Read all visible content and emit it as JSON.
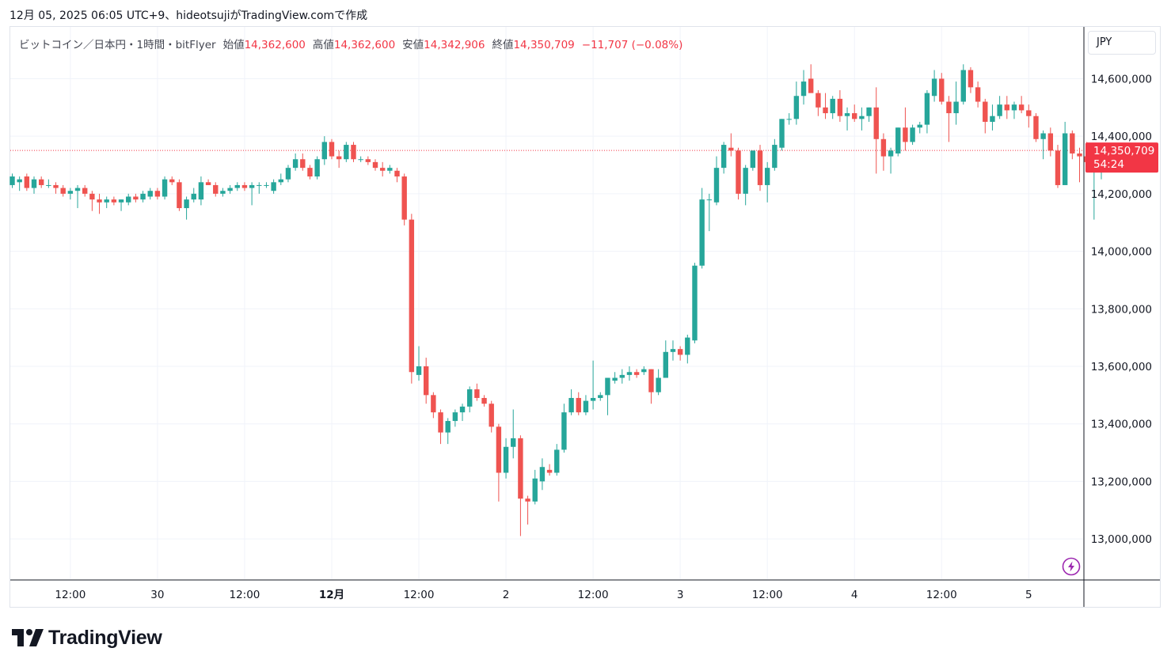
{
  "header": {
    "caption": "12月 05, 2025 06:05 UTC+9、hideotsujiがTradingView.comで作成"
  },
  "legend": {
    "symbol": "ビットコイン／日本円・1時間・bitFlyer",
    "open_label": "始値",
    "open_value": "14,362,600",
    "high_label": "高値",
    "high_value": "14,362,600",
    "low_label": "安値",
    "low_value": "14,342,906",
    "close_label": "終値",
    "close_value": "14,350,709",
    "change": "−11,707 (−0.08%)"
  },
  "currency_button": "JPY",
  "last_price_tag": {
    "price": "14,350,709",
    "countdown": "54:24"
  },
  "brand": {
    "name": "TradingView",
    "logo_icon": "tradingview-logo-icon"
  },
  "colors": {
    "up": "#26a69a",
    "down": "#ef5350",
    "grid": "#f0f3fa",
    "axis_text": "#131722",
    "price_line": "#f23645"
  },
  "chart_data": {
    "type": "candlestick",
    "y_tick_labels": [
      "14,600,000",
      "14,400,000",
      "14,200,000",
      "14,000,000",
      "13,800,000",
      "13,600,000",
      "13,400,000",
      "13,200,000",
      "13,000,000"
    ],
    "y_ticks": [
      14600000,
      14400000,
      14200000,
      14000000,
      13800000,
      13600000,
      13400000,
      13200000,
      13000000
    ],
    "ylim": [
      12860000,
      14780000
    ],
    "x_tick_labels": [
      "12:00",
      "30",
      "12:00",
      "12月",
      "12:00",
      "2",
      "12:00",
      "3",
      "12:00",
      "4",
      "12:00",
      "5"
    ],
    "bar_interval": "1h",
    "last_price": 14350709,
    "candles": [
      {
        "o": 14230000,
        "h": 14270000,
        "l": 14220000,
        "c": 14260000
      },
      {
        "o": 14240000,
        "h": 14260000,
        "l": 14210000,
        "c": 14250000
      },
      {
        "o": 14260000,
        "h": 14270000,
        "l": 14210000,
        "c": 14220000
      },
      {
        "o": 14220000,
        "h": 14260000,
        "l": 14200000,
        "c": 14250000
      },
      {
        "o": 14250000,
        "h": 14260000,
        "l": 14220000,
        "c": 14230000
      },
      {
        "o": 14230000,
        "h": 14250000,
        "l": 14220000,
        "c": 14230000
      },
      {
        "o": 14230000,
        "h": 14240000,
        "l": 14200000,
        "c": 14220000
      },
      {
        "o": 14220000,
        "h": 14230000,
        "l": 14190000,
        "c": 14200000
      },
      {
        "o": 14200000,
        "h": 14220000,
        "l": 14180000,
        "c": 14210000
      },
      {
        "o": 14210000,
        "h": 14230000,
        "l": 14150000,
        "c": 14220000
      },
      {
        "o": 14220000,
        "h": 14230000,
        "l": 14190000,
        "c": 14200000
      },
      {
        "o": 14200000,
        "h": 14210000,
        "l": 14140000,
        "c": 14180000
      },
      {
        "o": 14180000,
        "h": 14200000,
        "l": 14130000,
        "c": 14170000
      },
      {
        "o": 14170000,
        "h": 14190000,
        "l": 14150000,
        "c": 14180000
      },
      {
        "o": 14180000,
        "h": 14190000,
        "l": 14160000,
        "c": 14170000
      },
      {
        "o": 14170000,
        "h": 14180000,
        "l": 14140000,
        "c": 14180000
      },
      {
        "o": 14170000,
        "h": 14200000,
        "l": 14160000,
        "c": 14190000
      },
      {
        "o": 14190000,
        "h": 14200000,
        "l": 14170000,
        "c": 14180000
      },
      {
        "o": 14180000,
        "h": 14210000,
        "l": 14170000,
        "c": 14200000
      },
      {
        "o": 14190000,
        "h": 14220000,
        "l": 14180000,
        "c": 14210000
      },
      {
        "o": 14210000,
        "h": 14220000,
        "l": 14180000,
        "c": 14190000
      },
      {
        "o": 14190000,
        "h": 14260000,
        "l": 14180000,
        "c": 14250000
      },
      {
        "o": 14250000,
        "h": 14260000,
        "l": 14230000,
        "c": 14240000
      },
      {
        "o": 14240000,
        "h": 14250000,
        "l": 14140000,
        "c": 14150000
      },
      {
        "o": 14150000,
        "h": 14190000,
        "l": 14110000,
        "c": 14180000
      },
      {
        "o": 14180000,
        "h": 14220000,
        "l": 14170000,
        "c": 14200000
      },
      {
        "o": 14180000,
        "h": 14260000,
        "l": 14160000,
        "c": 14240000
      },
      {
        "o": 14240000,
        "h": 14250000,
        "l": 14230000,
        "c": 14230000
      },
      {
        "o": 14230000,
        "h": 14240000,
        "l": 14190000,
        "c": 14200000
      },
      {
        "o": 14200000,
        "h": 14220000,
        "l": 14190000,
        "c": 14210000
      },
      {
        "o": 14210000,
        "h": 14230000,
        "l": 14200000,
        "c": 14220000
      },
      {
        "o": 14220000,
        "h": 14240000,
        "l": 14210000,
        "c": 14230000
      },
      {
        "o": 14230000,
        "h": 14240000,
        "l": 14210000,
        "c": 14220000
      },
      {
        "o": 14220000,
        "h": 14240000,
        "l": 14160000,
        "c": 14230000
      },
      {
        "o": 14230000,
        "h": 14240000,
        "l": 14200000,
        "c": 14230000
      },
      {
        "o": 14230000,
        "h": 14240000,
        "l": 14220000,
        "c": 14230000
      },
      {
        "o": 14210000,
        "h": 14250000,
        "l": 14200000,
        "c": 14240000
      },
      {
        "o": 14240000,
        "h": 14270000,
        "l": 14230000,
        "c": 14250000
      },
      {
        "o": 14250000,
        "h": 14300000,
        "l": 14240000,
        "c": 14290000
      },
      {
        "o": 14290000,
        "h": 14340000,
        "l": 14280000,
        "c": 14320000
      },
      {
        "o": 14320000,
        "h": 14340000,
        "l": 14280000,
        "c": 14290000
      },
      {
        "o": 14290000,
        "h": 14300000,
        "l": 14250000,
        "c": 14260000
      },
      {
        "o": 14260000,
        "h": 14330000,
        "l": 14250000,
        "c": 14320000
      },
      {
        "o": 14320000,
        "h": 14400000,
        "l": 14300000,
        "c": 14380000
      },
      {
        "o": 14380000,
        "h": 14390000,
        "l": 14320000,
        "c": 14330000
      },
      {
        "o": 14330000,
        "h": 14350000,
        "l": 14290000,
        "c": 14320000
      },
      {
        "o": 14320000,
        "h": 14380000,
        "l": 14310000,
        "c": 14370000
      },
      {
        "o": 14370000,
        "h": 14380000,
        "l": 14310000,
        "c": 14320000
      },
      {
        "o": 14320000,
        "h": 14330000,
        "l": 14310000,
        "c": 14320000
      },
      {
        "o": 14320000,
        "h": 14330000,
        "l": 14300000,
        "c": 14310000
      },
      {
        "o": 14310000,
        "h": 14320000,
        "l": 14280000,
        "c": 14290000
      },
      {
        "o": 14290000,
        "h": 14310000,
        "l": 14260000,
        "c": 14280000
      },
      {
        "o": 14280000,
        "h": 14300000,
        "l": 14270000,
        "c": 14290000
      },
      {
        "o": 14280000,
        "h": 14290000,
        "l": 14240000,
        "c": 14260000
      },
      {
        "o": 14260000,
        "h": 14270000,
        "l": 14090000,
        "c": 14110000
      },
      {
        "o": 14110000,
        "h": 14130000,
        "l": 13540000,
        "c": 13580000
      },
      {
        "o": 13570000,
        "h": 13670000,
        "l": 13550000,
        "c": 13600000
      },
      {
        "o": 13600000,
        "h": 13630000,
        "l": 13470000,
        "c": 13500000
      },
      {
        "o": 13500000,
        "h": 13510000,
        "l": 13420000,
        "c": 13440000
      },
      {
        "o": 13440000,
        "h": 13450000,
        "l": 13330000,
        "c": 13370000
      },
      {
        "o": 13370000,
        "h": 13420000,
        "l": 13330000,
        "c": 13410000
      },
      {
        "o": 13410000,
        "h": 13450000,
        "l": 13390000,
        "c": 13440000
      },
      {
        "o": 13440000,
        "h": 13470000,
        "l": 13410000,
        "c": 13460000
      },
      {
        "o": 13460000,
        "h": 13530000,
        "l": 13440000,
        "c": 13520000
      },
      {
        "o": 13520000,
        "h": 13540000,
        "l": 13480000,
        "c": 13490000
      },
      {
        "o": 13490000,
        "h": 13500000,
        "l": 13460000,
        "c": 13470000
      },
      {
        "o": 13470000,
        "h": 13480000,
        "l": 13370000,
        "c": 13390000
      },
      {
        "o": 13390000,
        "h": 13400000,
        "l": 13130000,
        "c": 13230000
      },
      {
        "o": 13230000,
        "h": 13350000,
        "l": 13210000,
        "c": 13320000
      },
      {
        "o": 13320000,
        "h": 13450000,
        "l": 13280000,
        "c": 13350000
      },
      {
        "o": 13350000,
        "h": 13360000,
        "l": 13010000,
        "c": 13140000
      },
      {
        "o": 13140000,
        "h": 13150000,
        "l": 13050000,
        "c": 13130000
      },
      {
        "o": 13130000,
        "h": 13240000,
        "l": 13120000,
        "c": 13210000
      },
      {
        "o": 13200000,
        "h": 13280000,
        "l": 13170000,
        "c": 13250000
      },
      {
        "o": 13240000,
        "h": 13260000,
        "l": 13220000,
        "c": 13230000
      },
      {
        "o": 13230000,
        "h": 13330000,
        "l": 13220000,
        "c": 13310000
      },
      {
        "o": 13310000,
        "h": 13470000,
        "l": 13300000,
        "c": 13440000
      },
      {
        "o": 13440000,
        "h": 13520000,
        "l": 13430000,
        "c": 13490000
      },
      {
        "o": 13490000,
        "h": 13510000,
        "l": 13430000,
        "c": 13440000
      },
      {
        "o": 13440000,
        "h": 13500000,
        "l": 13430000,
        "c": 13480000
      },
      {
        "o": 13480000,
        "h": 13620000,
        "l": 13450000,
        "c": 13490000
      },
      {
        "o": 13490000,
        "h": 13510000,
        "l": 13480000,
        "c": 13500000
      },
      {
        "o": 13500000,
        "h": 13560000,
        "l": 13430000,
        "c": 13560000
      },
      {
        "o": 13550000,
        "h": 13580000,
        "l": 13540000,
        "c": 13560000
      },
      {
        "o": 13560000,
        "h": 13590000,
        "l": 13540000,
        "c": 13570000
      },
      {
        "o": 13570000,
        "h": 13600000,
        "l": 13550000,
        "c": 13580000
      },
      {
        "o": 13580000,
        "h": 13590000,
        "l": 13560000,
        "c": 13570000
      },
      {
        "o": 13580000,
        "h": 13600000,
        "l": 13570000,
        "c": 13590000
      },
      {
        "o": 13590000,
        "h": 13590000,
        "l": 13470000,
        "c": 13510000
      },
      {
        "o": 13510000,
        "h": 13590000,
        "l": 13500000,
        "c": 13560000
      },
      {
        "o": 13560000,
        "h": 13690000,
        "l": 13560000,
        "c": 13650000
      },
      {
        "o": 13650000,
        "h": 13690000,
        "l": 13620000,
        "c": 13660000
      },
      {
        "o": 13660000,
        "h": 13670000,
        "l": 13620000,
        "c": 13640000
      },
      {
        "o": 13640000,
        "h": 13710000,
        "l": 13610000,
        "c": 13700000
      },
      {
        "o": 13690000,
        "h": 13960000,
        "l": 13680000,
        "c": 13950000
      },
      {
        "o": 13950000,
        "h": 14220000,
        "l": 13940000,
        "c": 14180000
      },
      {
        "o": 14180000,
        "h": 14200000,
        "l": 14070000,
        "c": 14180000
      },
      {
        "o": 14170000,
        "h": 14330000,
        "l": 14160000,
        "c": 14290000
      },
      {
        "o": 14290000,
        "h": 14380000,
        "l": 14270000,
        "c": 14370000
      },
      {
        "o": 14360000,
        "h": 14410000,
        "l": 14330000,
        "c": 14350000
      },
      {
        "o": 14350000,
        "h": 14360000,
        "l": 14180000,
        "c": 14200000
      },
      {
        "o": 14200000,
        "h": 14300000,
        "l": 14160000,
        "c": 14290000
      },
      {
        "o": 14290000,
        "h": 14350000,
        "l": 14280000,
        "c": 14350000
      },
      {
        "o": 14350000,
        "h": 14370000,
        "l": 14210000,
        "c": 14230000
      },
      {
        "o": 14230000,
        "h": 14310000,
        "l": 14170000,
        "c": 14290000
      },
      {
        "o": 14290000,
        "h": 14390000,
        "l": 14280000,
        "c": 14370000
      },
      {
        "o": 14360000,
        "h": 14460000,
        "l": 14350000,
        "c": 14460000
      },
      {
        "o": 14460000,
        "h": 14480000,
        "l": 14440000,
        "c": 14460000
      },
      {
        "o": 14460000,
        "h": 14590000,
        "l": 14440000,
        "c": 14540000
      },
      {
        "o": 14540000,
        "h": 14630000,
        "l": 14510000,
        "c": 14590000
      },
      {
        "o": 14600000,
        "h": 14650000,
        "l": 14560000,
        "c": 14550000
      },
      {
        "o": 14550000,
        "h": 14560000,
        "l": 14470000,
        "c": 14500000
      },
      {
        "o": 14500000,
        "h": 14550000,
        "l": 14460000,
        "c": 14480000
      },
      {
        "o": 14480000,
        "h": 14540000,
        "l": 14460000,
        "c": 14530000
      },
      {
        "o": 14530000,
        "h": 14560000,
        "l": 14450000,
        "c": 14470000
      },
      {
        "o": 14470000,
        "h": 14500000,
        "l": 14420000,
        "c": 14480000
      },
      {
        "o": 14480000,
        "h": 14510000,
        "l": 14450000,
        "c": 14460000
      },
      {
        "o": 14460000,
        "h": 14500000,
        "l": 14420000,
        "c": 14470000
      },
      {
        "o": 14470000,
        "h": 14500000,
        "l": 14450000,
        "c": 14500000
      },
      {
        "o": 14500000,
        "h": 14570000,
        "l": 14270000,
        "c": 14390000
      },
      {
        "o": 14390000,
        "h": 14410000,
        "l": 14280000,
        "c": 14330000
      },
      {
        "o": 14330000,
        "h": 14360000,
        "l": 14270000,
        "c": 14350000
      },
      {
        "o": 14340000,
        "h": 14430000,
        "l": 14330000,
        "c": 14430000
      },
      {
        "o": 14430000,
        "h": 14500000,
        "l": 14350000,
        "c": 14380000
      },
      {
        "o": 14380000,
        "h": 14440000,
        "l": 14370000,
        "c": 14430000
      },
      {
        "o": 14430000,
        "h": 14450000,
        "l": 14410000,
        "c": 14440000
      },
      {
        "o": 14440000,
        "h": 14560000,
        "l": 14410000,
        "c": 14550000
      },
      {
        "o": 14540000,
        "h": 14630000,
        "l": 14520000,
        "c": 14600000
      },
      {
        "o": 14600000,
        "h": 14620000,
        "l": 14510000,
        "c": 14520000
      },
      {
        "o": 14520000,
        "h": 14540000,
        "l": 14380000,
        "c": 14480000
      },
      {
        "o": 14480000,
        "h": 14590000,
        "l": 14440000,
        "c": 14520000
      },
      {
        "o": 14520000,
        "h": 14650000,
        "l": 14510000,
        "c": 14630000
      },
      {
        "o": 14630000,
        "h": 14640000,
        "l": 14550000,
        "c": 14570000
      },
      {
        "o": 14570000,
        "h": 14590000,
        "l": 14500000,
        "c": 14520000
      },
      {
        "o": 14520000,
        "h": 14530000,
        "l": 14410000,
        "c": 14450000
      },
      {
        "o": 14450000,
        "h": 14510000,
        "l": 14420000,
        "c": 14470000
      },
      {
        "o": 14470000,
        "h": 14540000,
        "l": 14460000,
        "c": 14510000
      },
      {
        "o": 14510000,
        "h": 14540000,
        "l": 14460000,
        "c": 14490000
      },
      {
        "o": 14490000,
        "h": 14520000,
        "l": 14460000,
        "c": 14510000
      },
      {
        "o": 14510000,
        "h": 14540000,
        "l": 14480000,
        "c": 14490000
      },
      {
        "o": 14490000,
        "h": 14510000,
        "l": 14430000,
        "c": 14470000
      },
      {
        "o": 14470000,
        "h": 14480000,
        "l": 14380000,
        "c": 14390000
      },
      {
        "o": 14390000,
        "h": 14420000,
        "l": 14320000,
        "c": 14410000
      },
      {
        "o": 14410000,
        "h": 14430000,
        "l": 14330000,
        "c": 14350000
      },
      {
        "o": 14350000,
        "h": 14370000,
        "l": 14220000,
        "c": 14230000
      },
      {
        "o": 14230000,
        "h": 14450000,
        "l": 14230000,
        "c": 14410000
      },
      {
        "o": 14410000,
        "h": 14420000,
        "l": 14320000,
        "c": 14340000
      },
      {
        "o": 14340000,
        "h": 14360000,
        "l": 14240000,
        "c": 14330000
      },
      {
        "o": 14330000,
        "h": 14380000,
        "l": 14320000,
        "c": 14310000
      },
      {
        "o": 14280000,
        "h": 14300000,
        "l": 14110000,
        "c": 14300000
      },
      {
        "o": 14300000,
        "h": 14370000,
        "l": 14250000,
        "c": 14370000
      },
      {
        "o": 14362600,
        "h": 14362600,
        "l": 14342906,
        "c": 14350709
      }
    ]
  }
}
